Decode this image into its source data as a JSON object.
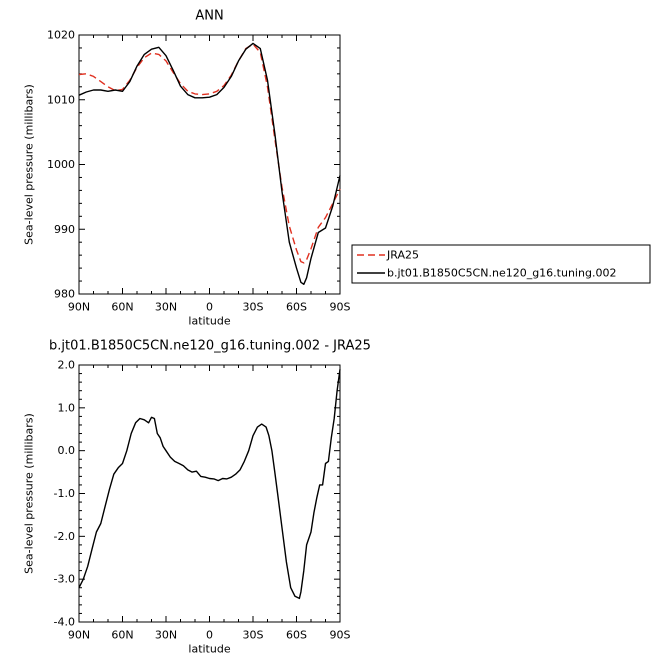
{
  "chart_data": [
    {
      "type": "line",
      "title": "ANN",
      "xlabel": "latitude",
      "ylabel": "Sea-level pressure (millibars)",
      "xlim": [
        90,
        -90
      ],
      "ylim": [
        980,
        1020
      ],
      "xticks": [
        90,
        60,
        30,
        0,
        -30,
        -60,
        -90
      ],
      "xtick_labels": [
        "90N",
        "60N",
        "30N",
        "0",
        "30S",
        "60S",
        "90S"
      ],
      "yticks": [
        980,
        990,
        1000,
        1010,
        1020
      ],
      "ytick_labels": [
        "980",
        "990",
        "1000",
        "1010",
        "1020"
      ],
      "legend_position": "right",
      "series": [
        {
          "name": "JRA25",
          "color": "#e03020",
          "dash": "dashed",
          "x": [
            90,
            85,
            80,
            75,
            70,
            65,
            60,
            55,
            50,
            45,
            40,
            35,
            30,
            25,
            20,
            15,
            10,
            5,
            0,
            -5,
            -10,
            -15,
            -20,
            -25,
            -30,
            -35,
            -40,
            -45,
            -50,
            -55,
            -60,
            -63,
            -65,
            -67,
            -70,
            -75,
            -80,
            -85,
            -90
          ],
          "values": [
            1013.9,
            1014.0,
            1013.6,
            1012.8,
            1012.0,
            1011.4,
            1011.6,
            1013.0,
            1015.0,
            1016.5,
            1017.2,
            1017.0,
            1016.0,
            1014.2,
            1012.5,
            1011.3,
            1010.9,
            1010.8,
            1010.9,
            1011.3,
            1012.2,
            1013.8,
            1016.0,
            1017.9,
            1018.6,
            1017.3,
            1012.0,
            1004.0,
            996.5,
            990.5,
            986.8,
            985.0,
            984.8,
            985.3,
            987.0,
            990.3,
            991.8,
            994.0,
            996.2
          ]
        },
        {
          "name": "b.jt01.B1850C5CN.ne120_g16.tuning.002",
          "color": "#000000",
          "dash": "solid",
          "x": [
            90,
            85,
            80,
            75,
            70,
            65,
            60,
            55,
            50,
            45,
            40,
            35,
            30,
            25,
            20,
            15,
            10,
            5,
            0,
            -5,
            -10,
            -15,
            -20,
            -25,
            -30,
            -35,
            -40,
            -45,
            -50,
            -55,
            -60,
            -63,
            -65,
            -67,
            -70,
            -75,
            -80,
            -85,
            -90
          ],
          "values": [
            1010.7,
            1011.2,
            1011.5,
            1011.5,
            1011.3,
            1011.5,
            1011.3,
            1012.8,
            1015.2,
            1017.0,
            1017.8,
            1018.1,
            1016.8,
            1014.5,
            1012.1,
            1010.8,
            1010.3,
            1010.3,
            1010.4,
            1010.8,
            1011.9,
            1013.6,
            1016.0,
            1017.8,
            1018.7,
            1017.9,
            1013.0,
            1004.8,
            995.8,
            988.0,
            984.0,
            981.8,
            981.5,
            982.5,
            985.5,
            989.5,
            990.2,
            993.6,
            998.3
          ]
        }
      ]
    },
    {
      "type": "line",
      "title": "b.jt01.B1850C5CN.ne120_g16.tuning.002 - JRA25",
      "xlabel": "latitude",
      "ylabel": "Sea-level pressure (millibars)",
      "xlim": [
        90,
        -90
      ],
      "ylim": [
        -4.0,
        2.0
      ],
      "xticks": [
        90,
        60,
        30,
        0,
        -30,
        -60,
        -90
      ],
      "xtick_labels": [
        "90N",
        "60N",
        "30N",
        "0",
        "30S",
        "60S",
        "90S"
      ],
      "yticks": [
        -4.0,
        -3.0,
        -2.0,
        -1.0,
        0.0,
        1.0,
        2.0
      ],
      "ytick_labels": [
        "-4.0",
        "-3.0",
        "-2.0",
        "-1.0",
        "0.0",
        "1.0",
        "2.0"
      ],
      "series": [
        {
          "color": "#000000",
          "dash": "solid",
          "x": [
            90,
            87,
            84,
            81,
            78,
            75,
            72,
            69,
            66,
            63,
            60,
            57,
            54,
            51,
            48,
            45,
            42,
            40,
            38,
            36,
            34,
            32,
            30,
            27,
            24,
            21,
            18,
            15,
            12,
            9,
            6,
            3,
            0,
            -3,
            -6,
            -9,
            -12,
            -15,
            -18,
            -21,
            -24,
            -27,
            -30,
            -33,
            -36,
            -39,
            -41,
            -43,
            -45,
            -47,
            -50,
            -53,
            -56,
            -59,
            -62,
            -63,
            -65,
            -67,
            -70,
            -72,
            -74,
            -76,
            -78,
            -80,
            -82,
            -84,
            -86,
            -88,
            -90
          ],
          "values": [
            -3.2,
            -3.0,
            -2.7,
            -2.3,
            -1.9,
            -1.7,
            -1.3,
            -0.9,
            -0.55,
            -0.4,
            -0.3,
            0.0,
            0.4,
            0.65,
            0.75,
            0.72,
            0.65,
            0.78,
            0.75,
            0.4,
            0.3,
            0.1,
            0.0,
            -0.15,
            -0.25,
            -0.3,
            -0.35,
            -0.45,
            -0.5,
            -0.48,
            -0.6,
            -0.62,
            -0.65,
            -0.66,
            -0.7,
            -0.65,
            -0.66,
            -0.62,
            -0.55,
            -0.45,
            -0.25,
            0.0,
            0.35,
            0.55,
            0.62,
            0.55,
            0.35,
            0.0,
            -0.5,
            -1.0,
            -1.8,
            -2.6,
            -3.2,
            -3.4,
            -3.45,
            -3.3,
            -2.8,
            -2.2,
            -1.9,
            -1.45,
            -1.1,
            -0.8,
            -0.8,
            -0.3,
            -0.25,
            0.3,
            0.75,
            1.4,
            1.9
          ]
        }
      ]
    }
  ]
}
